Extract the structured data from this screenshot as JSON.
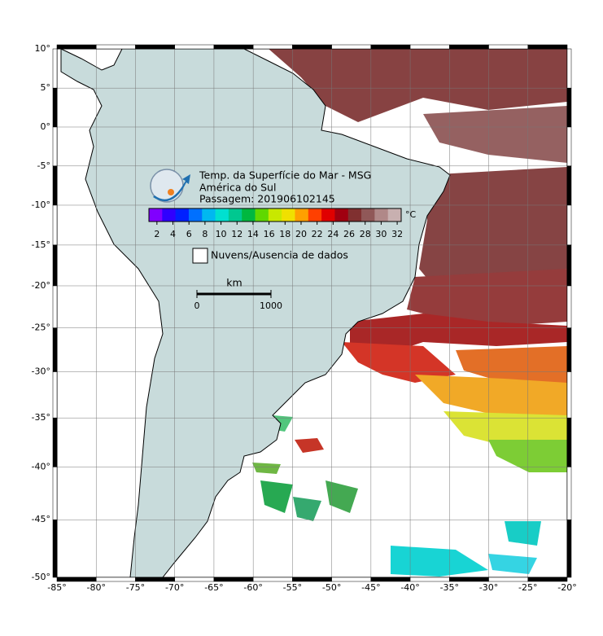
{
  "map": {
    "title": [
      "Temp. da Superfície do Mar - MSG",
      "América do Sul",
      "Passagem: 201906102145"
    ],
    "projection": "mercator",
    "grid": true,
    "xlim": [
      -85,
      -20
    ],
    "ylim": [
      -50,
      10
    ],
    "xticks": [
      {
        "value": -85,
        "label": "-85°"
      },
      {
        "value": -80,
        "label": "-80°"
      },
      {
        "value": -75,
        "label": "-75°"
      },
      {
        "value": -70,
        "label": "-70°"
      },
      {
        "value": -65,
        "label": "-65°"
      },
      {
        "value": -60,
        "label": "-60°"
      },
      {
        "value": -55,
        "label": "-55°"
      },
      {
        "value": -50,
        "label": "-50°"
      },
      {
        "value": -45,
        "label": "-45°"
      },
      {
        "value": -40,
        "label": "-40°"
      },
      {
        "value": -35,
        "label": "-35°"
      },
      {
        "value": -30,
        "label": "-30°"
      },
      {
        "value": -25,
        "label": "-25°"
      },
      {
        "value": -20,
        "label": "-20°"
      }
    ],
    "yticks": [
      {
        "value": 10,
        "label": "10°"
      },
      {
        "value": 5,
        "label": "5°"
      },
      {
        "value": 0,
        "label": "0°"
      },
      {
        "value": -5,
        "label": "-5°"
      },
      {
        "value": -10,
        "label": "-10°"
      },
      {
        "value": -15,
        "label": "-15°"
      },
      {
        "value": -20,
        "label": "-20°"
      },
      {
        "value": -25,
        "label": "-25°"
      },
      {
        "value": -30,
        "label": "-30°"
      },
      {
        "value": -35,
        "label": "-35°"
      },
      {
        "value": -40,
        "label": "-40°"
      },
      {
        "value": -45,
        "label": "-45°"
      },
      {
        "value": -50,
        "label": "-50°"
      }
    ],
    "colorbar": {
      "lim": [
        1,
        32.5
      ],
      "ticks": [
        2,
        4,
        6,
        8,
        10,
        12,
        14,
        16,
        18,
        20,
        22,
        24,
        26,
        28,
        30,
        32
      ],
      "unit": "°C",
      "colors": [
        "#8000ff",
        "#3000ff",
        "#0020ff",
        "#0070ff",
        "#00b8f0",
        "#00e0d0",
        "#00c890",
        "#00b840",
        "#60d800",
        "#c8e800",
        "#f0e000",
        "#ffa000",
        "#ff4000",
        "#e00000",
        "#a00010",
        "#803030",
        "#905858",
        "#b08888",
        "#c8b0b0"
      ]
    },
    "legend": {
      "label": "Nuvens/Ausencia de dados"
    },
    "scale_bar": {
      "unit": "km",
      "ticks": [
        0,
        1000
      ]
    }
  }
}
